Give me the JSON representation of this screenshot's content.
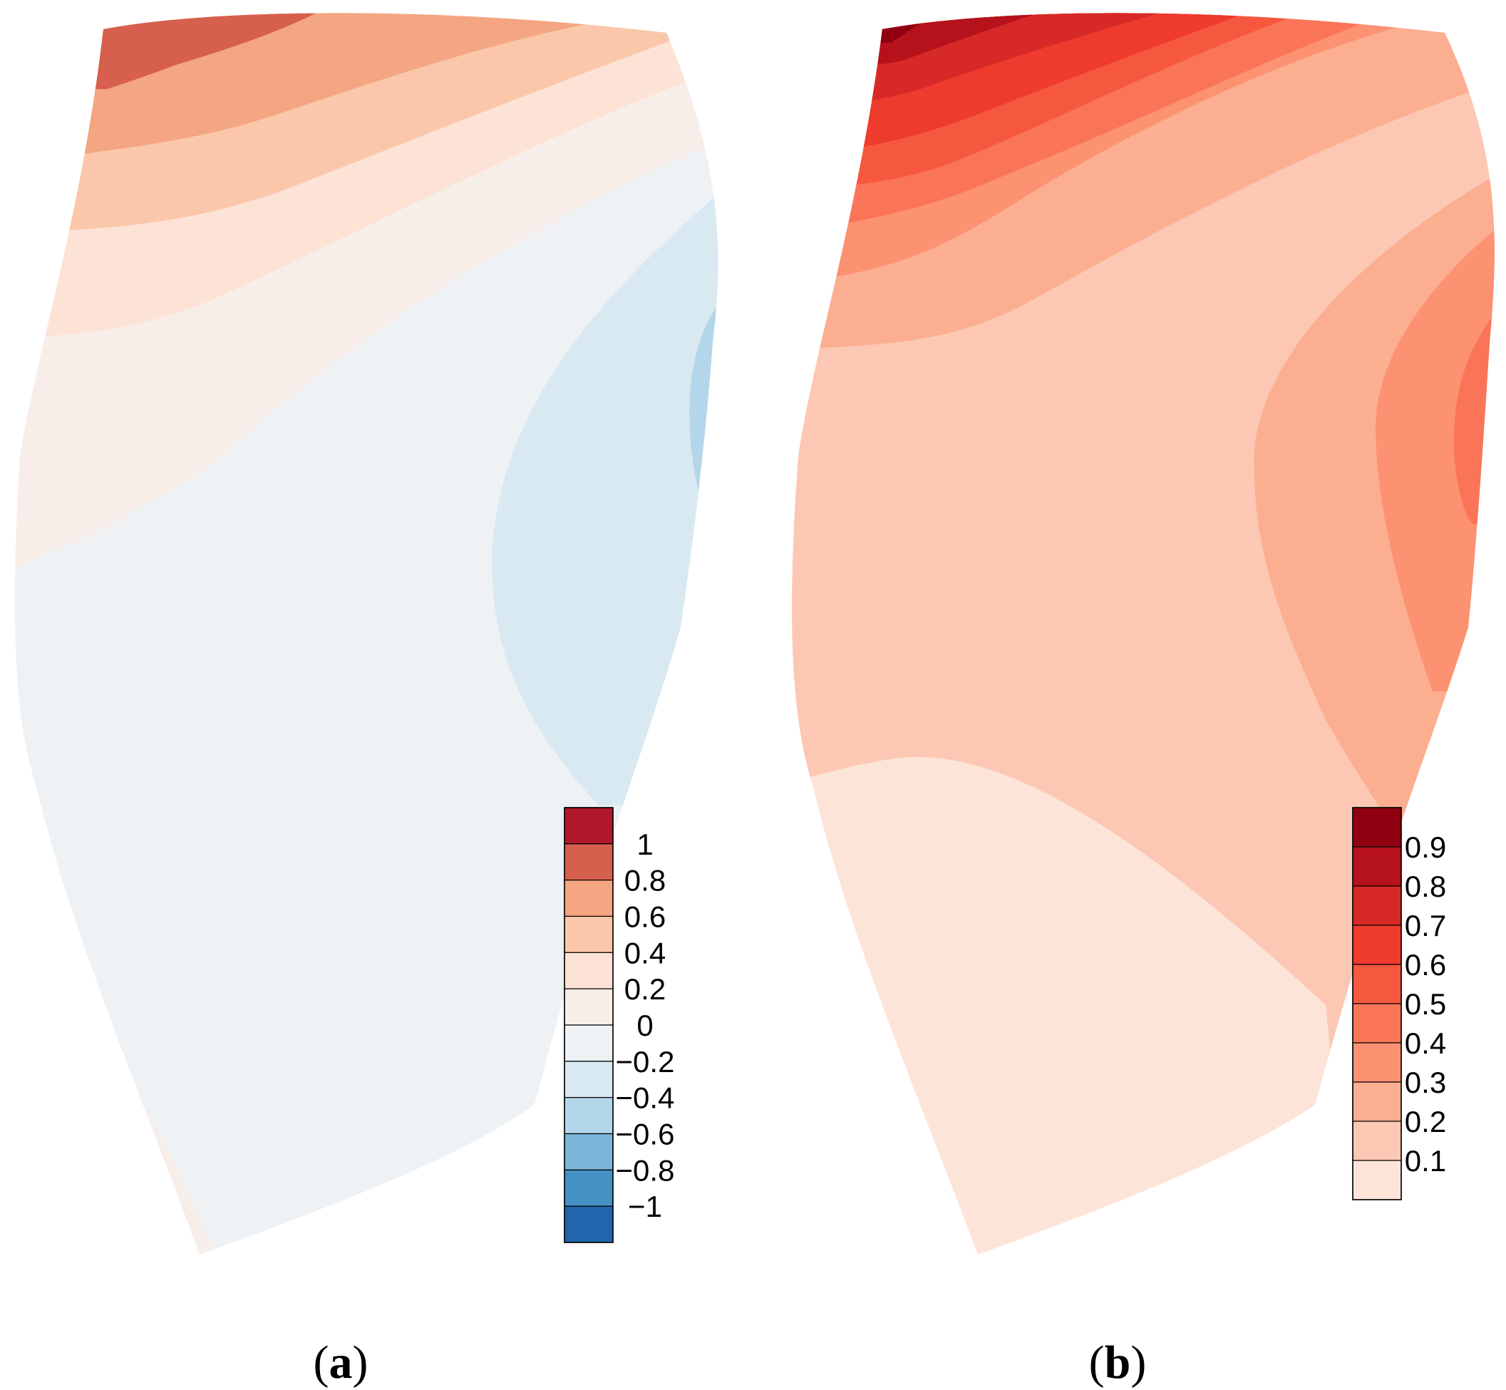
{
  "chart_data": [
    {
      "type": "heatmap",
      "panel_label": "a",
      "colorbar": {
        "tick_labels": [
          "1",
          "0.8",
          "0.6",
          "0.4",
          "0.2",
          "0",
          "−0.2",
          "−0.4",
          "−0.6",
          "−0.8",
          "−1"
        ],
        "levels": [
          1.2,
          1.0,
          0.8,
          0.6,
          0.4,
          0.2,
          0,
          -0.2,
          -0.4,
          -0.6,
          -0.8,
          -1.0
        ],
        "colors": [
          "#b2182b",
          "#d6604d",
          "#f4a582",
          "#fbc7ab",
          "#fde3d6",
          "#f8eee9",
          "#eef2f5",
          "#d9e9f1",
          "#b4d6ea",
          "#7ab6d9",
          "#4591c4",
          "#2166ac"
        ]
      },
      "regions": [
        {
          "level_range": [
            0.8,
            1.0
          ],
          "color": "#d6604d"
        },
        {
          "level_range": [
            0.6,
            0.8
          ],
          "color": "#f4a582"
        },
        {
          "level_range": [
            0.4,
            0.6
          ],
          "color": "#fbc7ab"
        },
        {
          "level_range": [
            0.2,
            0.4
          ],
          "color": "#fde3d6"
        },
        {
          "level_range": [
            0.0,
            0.2
          ],
          "color": "#f8eee9"
        },
        {
          "level_range": [
            -0.2,
            0.0
          ],
          "color": "#eef2f5"
        },
        {
          "level_range": [
            -0.4,
            -0.2
          ],
          "color": "#d9e9f1"
        },
        {
          "level_range": [
            -0.6,
            -0.4
          ],
          "color": "#b4d6ea"
        }
      ]
    },
    {
      "type": "heatmap",
      "panel_label": "b",
      "colorbar": {
        "tick_labels": [
          "0.9",
          "0.8",
          "0.7",
          "0.6",
          "0.5",
          "0.4",
          "0.3",
          "0.2",
          "0.1"
        ],
        "levels": [
          1.0,
          0.9,
          0.8,
          0.7,
          0.6,
          0.5,
          0.4,
          0.3,
          0.2,
          0.1,
          0.05
        ],
        "colors": [
          "#900010",
          "#b5121b",
          "#d72a28",
          "#ee3b2d",
          "#f6583f",
          "#fa7557",
          "#fc9272",
          "#fcae91",
          "#fcc8b3",
          "#fde4d9"
        ]
      },
      "regions": [
        {
          "level_range": [
            0.9,
            1.0
          ],
          "color": "#900010"
        },
        {
          "level_range": [
            0.8,
            0.9
          ],
          "color": "#b5121b"
        },
        {
          "level_range": [
            0.7,
            0.8
          ],
          "color": "#d72a28"
        },
        {
          "level_range": [
            0.6,
            0.7
          ],
          "color": "#ee3b2d"
        },
        {
          "level_range": [
            0.5,
            0.6
          ],
          "color": "#f6583f"
        },
        {
          "level_range": [
            0.4,
            0.5
          ],
          "color": "#fa7557"
        },
        {
          "level_range": [
            0.3,
            0.4
          ],
          "color": "#fc9272"
        },
        {
          "level_range": [
            0.2,
            0.3
          ],
          "color": "#fcae91"
        },
        {
          "level_range": [
            0.1,
            0.2
          ],
          "color": "#fcc8b3"
        },
        {
          "level_range": [
            0.05,
            0.1
          ],
          "color": "#fde4d9"
        }
      ]
    }
  ]
}
